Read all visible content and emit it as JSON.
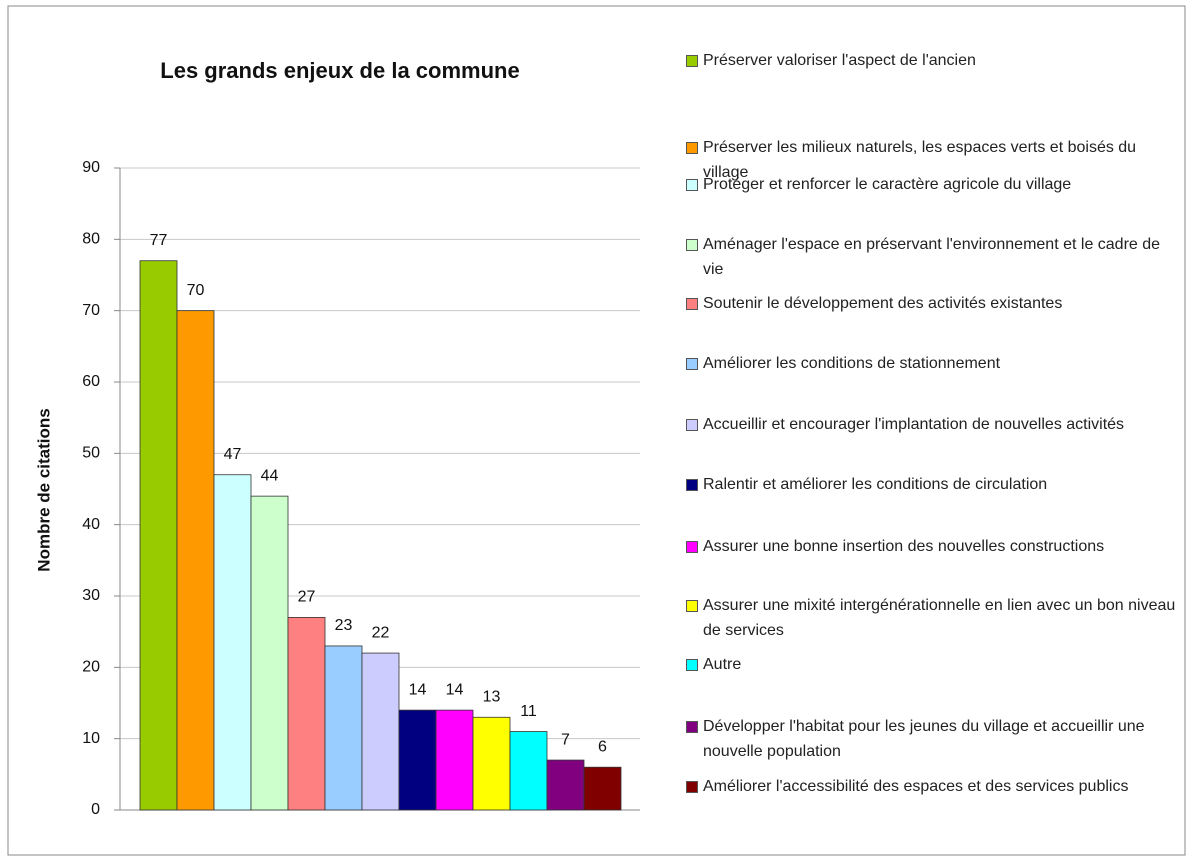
{
  "chart_data": {
    "type": "bar",
    "title": "Les grands enjeux de la commune",
    "ylabel": "Nombre de citations",
    "ylim": [
      0,
      90
    ],
    "yticks": [
      0,
      10,
      20,
      30,
      40,
      50,
      60,
      70,
      80,
      90
    ],
    "grid": true,
    "legend": "right",
    "series": [
      {
        "name": "Préserver valoriser l'aspect de l'ancien",
        "color": "#99cc00",
        "values": [
          77
        ]
      },
      {
        "name": "Préserver les milieux naturels, les espaces verts et boisés du village",
        "color": "#ff9900",
        "values": [
          70
        ]
      },
      {
        "name": "Protéger et renforcer le caractère agricole du village",
        "color": "#ccffff",
        "values": [
          47
        ]
      },
      {
        "name": "Aménager l'espace en préservant l'environnement et le cadre de vie",
        "color": "#ccffcc",
        "values": [
          44
        ]
      },
      {
        "name": "Soutenir le développement des activités existantes",
        "color": "#ff8080",
        "values": [
          27
        ]
      },
      {
        "name": "Améliorer les conditions de stationnement",
        "color": "#99ccff",
        "values": [
          23
        ]
      },
      {
        "name": "Accueillir et encourager l'implantation de nouvelles activités",
        "color": "#ccccff",
        "values": [
          22
        ]
      },
      {
        "name": "Ralentir et améliorer les conditions de circulation",
        "color": "#000080",
        "values": [
          14
        ]
      },
      {
        "name": "Assurer une bonne insertion des nouvelles constructions",
        "color": "#ff00ff",
        "values": [
          14
        ]
      },
      {
        "name": "Assurer une mixité intergénérationnelle en lien avec un bon niveau de services",
        "color": "#ffff00",
        "values": [
          13
        ]
      },
      {
        "name": "Autre",
        "color": "#00ffff",
        "values": [
          11
        ]
      },
      {
        "name": "Développer l'habitat pour les jeunes du village et accueillir une nouvelle population",
        "color": "#800080",
        "values": [
          7
        ]
      },
      {
        "name": "Améliorer l'accessibilité des espaces et des services publics",
        "color": "#800000",
        "values": [
          6
        ]
      }
    ]
  }
}
